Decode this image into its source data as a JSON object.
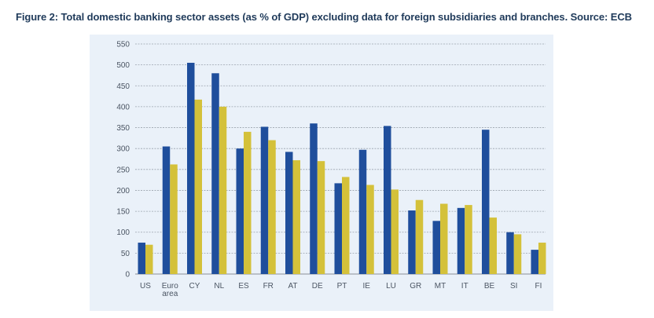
{
  "figure": {
    "title": "Figure 2: Total domestic banking sector assets (as % of GDP) excluding data for foreign subsidiaries and branches. Source: ECB"
  },
  "chart_data": {
    "type": "bar",
    "categories": [
      "US",
      "Euro area",
      "CY",
      "NL",
      "ES",
      "FR",
      "AT",
      "DE",
      "PT",
      "IE",
      "LU",
      "GR",
      "MT",
      "IT",
      "BE",
      "SI",
      "FI"
    ],
    "series": [
      {
        "color": "#1f4e9c",
        "values": [
          75,
          305,
          505,
          480,
          300,
          352,
          292,
          360,
          217,
          297,
          354,
          152,
          127,
          158,
          345,
          100,
          58
        ]
      },
      {
        "color": "#d4c13a",
        "values": [
          70,
          262,
          417,
          400,
          340,
          320,
          272,
          270,
          232,
          213,
          202,
          177,
          168,
          165,
          135,
          95,
          75
        ]
      }
    ],
    "yticks": [
      0,
      50,
      100,
      150,
      200,
      250,
      300,
      350,
      400,
      450,
      500,
      550
    ],
    "ylim": [
      0,
      550
    ],
    "grid": true,
    "legend": "none"
  }
}
